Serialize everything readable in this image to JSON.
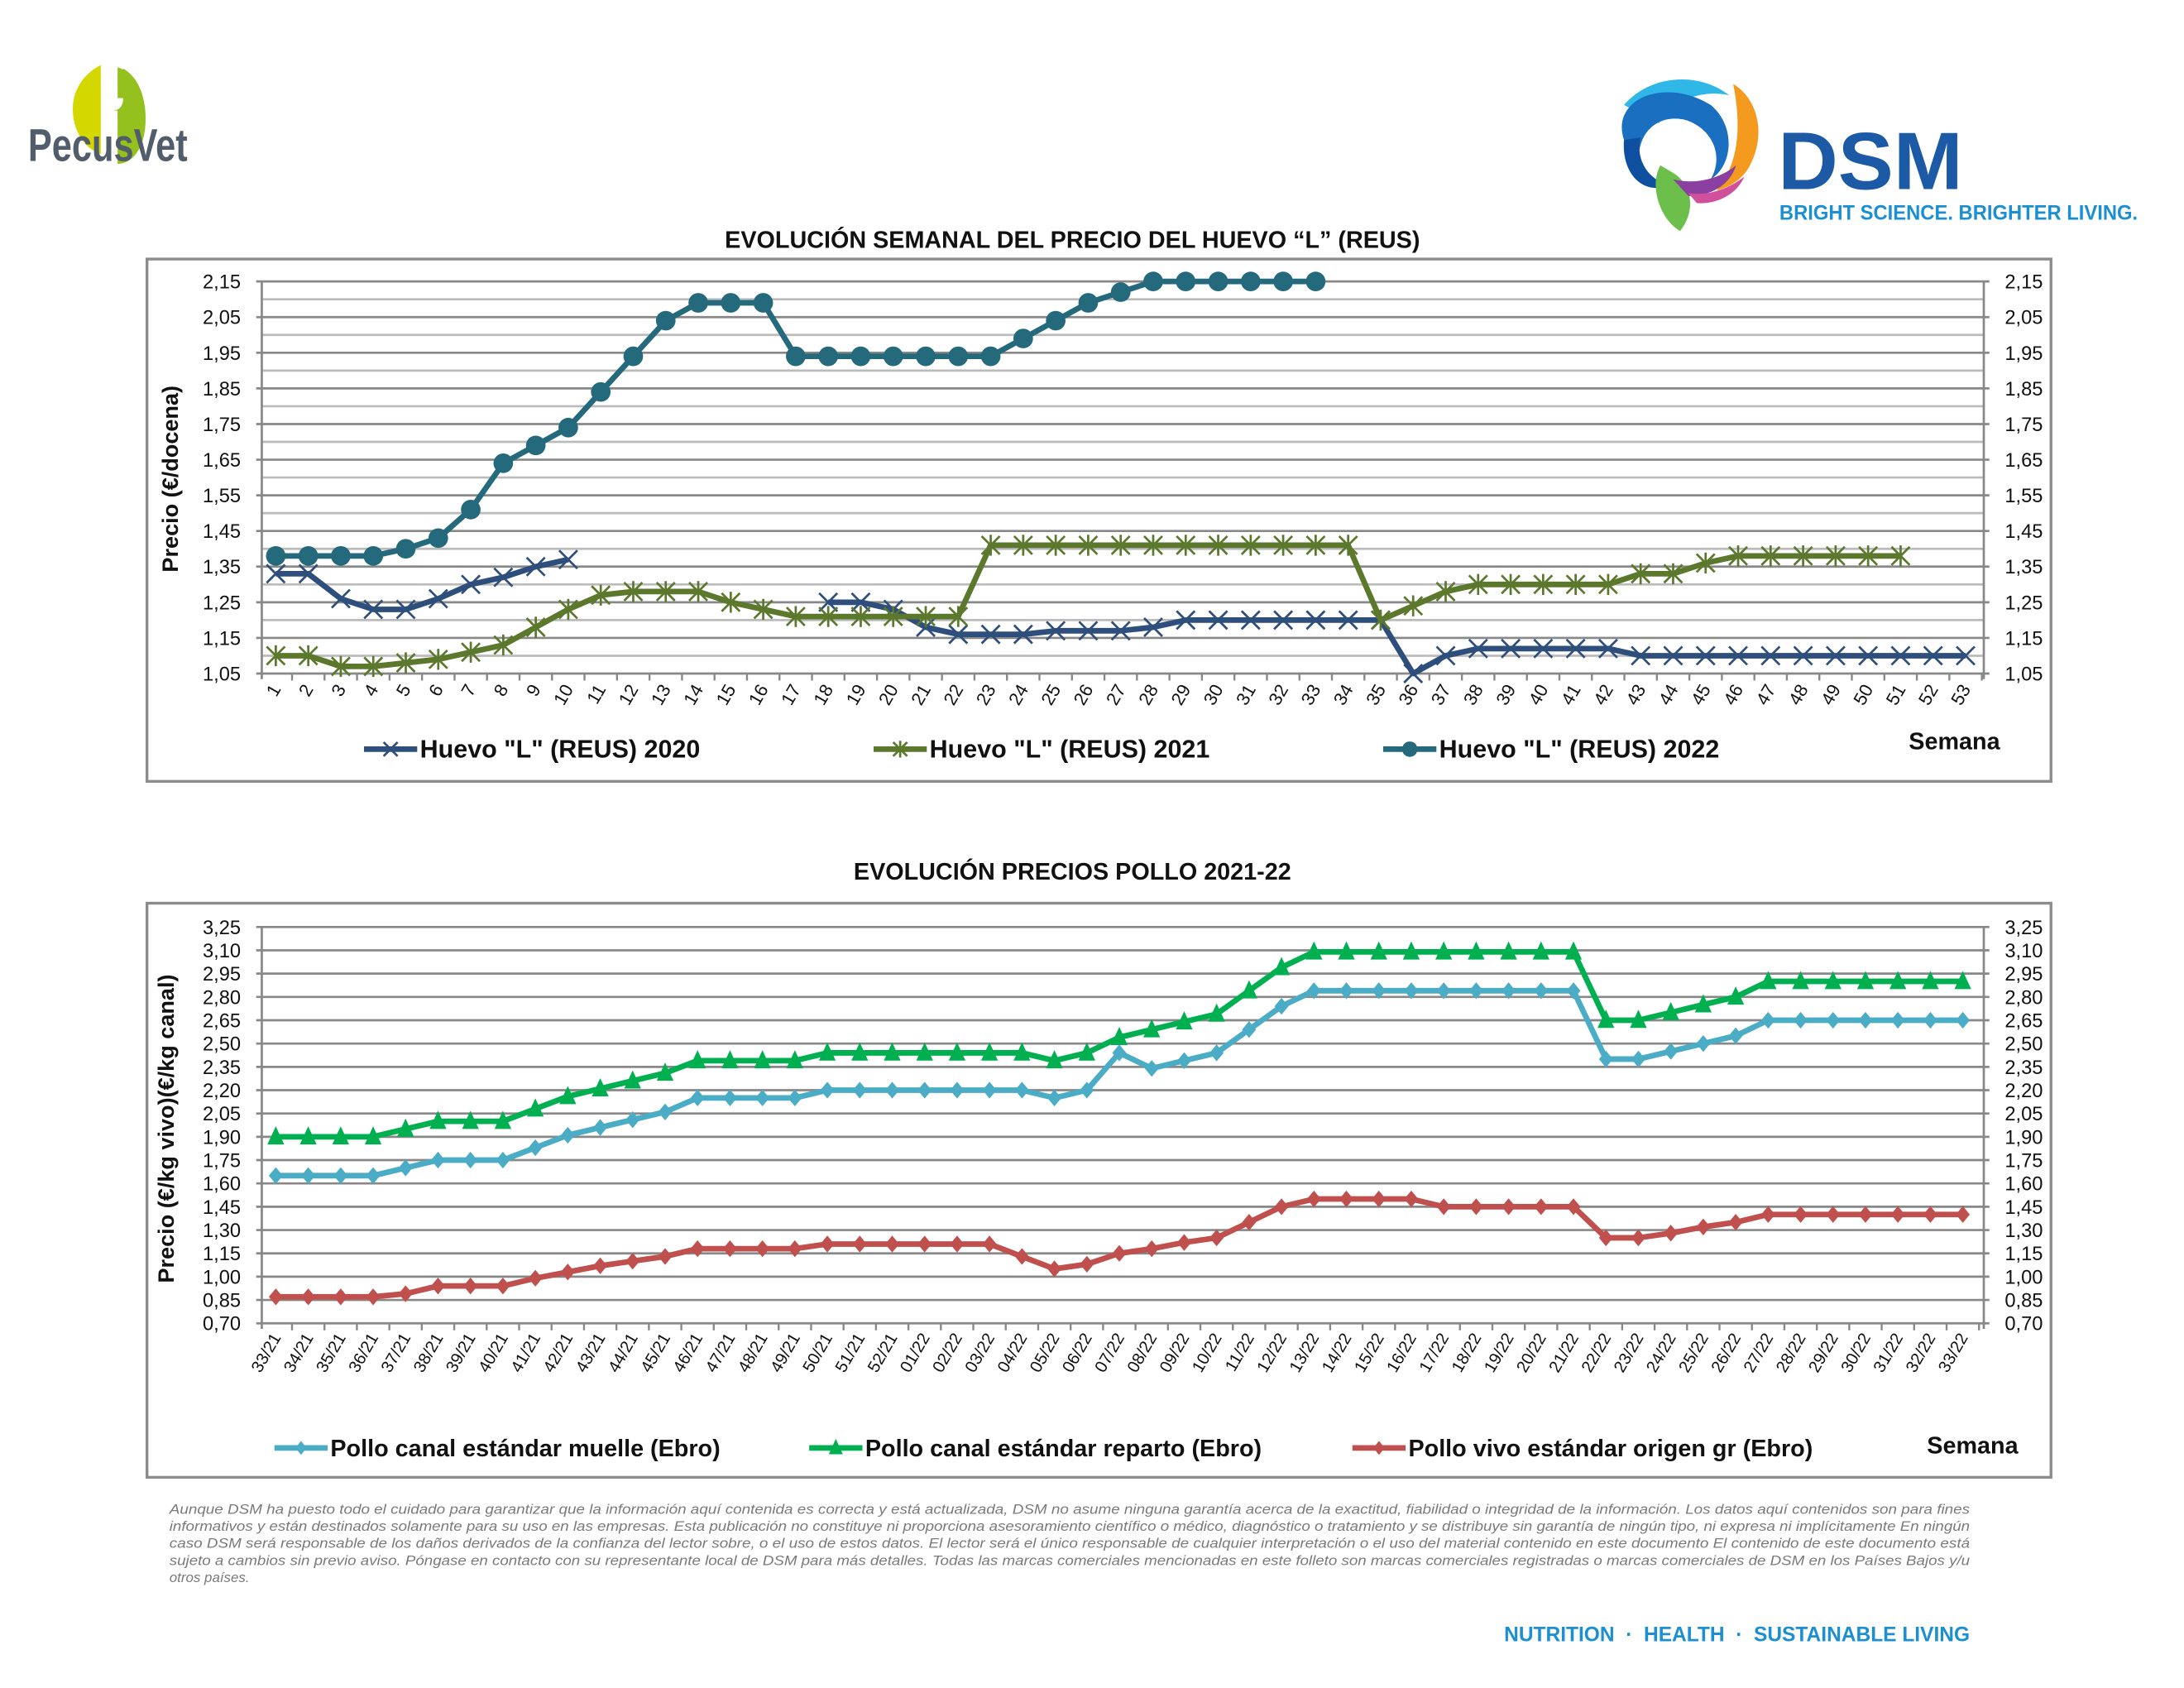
{
  "header": {
    "left_logo_text": "PecusVet",
    "right_logo_text": "DSM",
    "right_logo_tagline": "BRIGHT SCIENCE. BRIGHTER LIVING."
  },
  "colors": {
    "egg_2020": "#2e4e7b",
    "egg_2021": "#5b782d",
    "egg_2022": "#246a7c",
    "pollo_muelle": "#4bacc6",
    "pollo_reparto": "#00b050",
    "pollo_vivo": "#c0504d",
    "grid_major": "#888888",
    "grid_minor": "#bbbbbb",
    "dsm_blue": "#1c5aa6",
    "dsm_light_blue": "#1b8fd2",
    "pecusvet_green": "#95c11f",
    "pecusvet_lime": "#d4d800",
    "pecusvet_gray": "#515d6b"
  },
  "chart_data": [
    {
      "type": "line",
      "title": "EVOLUCIÓN SEMANAL DEL PRECIO DEL HUEVO “L” (REUS)",
      "xlabel": "Semana",
      "ylabel": "Precio (€/docena)",
      "ylim": [
        1.05,
        2.15
      ],
      "ytick_step": 0.1,
      "minor_grid_step": 0.05,
      "yticks": [
        "2,15",
        "2,05",
        "1,95",
        "1,85",
        "1,75",
        "1,65",
        "1,55",
        "1,45",
        "1,35",
        "1,25",
        "1,15",
        "1,05"
      ],
      "secondary_axis": true,
      "grid": true,
      "legend_position": "bottom",
      "categories": [
        "1",
        "2",
        "3",
        "4",
        "5",
        "6",
        "7",
        "8",
        "9",
        "10",
        "11",
        "12",
        "13",
        "14",
        "15",
        "16",
        "17",
        "18",
        "19",
        "20",
        "21",
        "22",
        "23",
        "24",
        "25",
        "26",
        "27",
        "28",
        "29",
        "30",
        "31",
        "32",
        "33",
        "34",
        "35",
        "36",
        "37",
        "38",
        "39",
        "40",
        "41",
        "42",
        "43",
        "44",
        "45",
        "46",
        "47",
        "48",
        "49",
        "50",
        "51",
        "52",
        "53"
      ],
      "series": [
        {
          "name": "Huevo \"L\" (REUS) 2020",
          "marker": "x",
          "values": [
            1.33,
            1.33,
            1.26,
            1.23,
            1.23,
            1.26,
            1.3,
            1.32,
            1.35,
            1.37,
            null,
            null,
            null,
            null,
            null,
            null,
            null,
            1.25,
            1.25,
            1.23,
            1.18,
            1.16,
            1.16,
            1.16,
            1.17,
            1.17,
            1.17,
            1.18,
            1.2,
            1.2,
            1.2,
            1.2,
            1.2,
            1.2,
            1.2,
            1.05,
            1.1,
            1.12,
            1.12,
            1.12,
            1.12,
            1.12,
            1.1,
            1.1,
            1.1,
            1.1,
            1.1,
            1.1,
            1.1,
            1.1,
            1.1,
            1.1,
            1.1
          ]
        },
        {
          "name": "Huevo \"L\" (REUS) 2021",
          "marker": "asterisk",
          "values": [
            1.1,
            1.1,
            1.07,
            1.07,
            1.08,
            1.09,
            1.11,
            1.13,
            1.18,
            1.23,
            1.27,
            1.28,
            1.28,
            1.28,
            1.25,
            1.23,
            1.21,
            1.21,
            1.21,
            1.21,
            1.21,
            1.21,
            1.41,
            1.41,
            1.41,
            1.41,
            1.41,
            1.41,
            1.41,
            1.41,
            1.41,
            1.41,
            1.41,
            1.41,
            1.2,
            1.24,
            1.28,
            1.3,
            1.3,
            1.3,
            1.3,
            1.3,
            1.33,
            1.33,
            1.36,
            1.38,
            1.38,
            1.38,
            1.38,
            1.38,
            1.38,
            null,
            null
          ]
        },
        {
          "name": "Huevo \"L\" (REUS) 2022",
          "marker": "circle",
          "values": [
            1.38,
            1.38,
            1.38,
            1.38,
            1.4,
            1.43,
            1.51,
            1.64,
            1.69,
            1.74,
            1.84,
            1.94,
            2.04,
            2.09,
            2.09,
            2.09,
            1.94,
            1.94,
            1.94,
            1.94,
            1.94,
            1.94,
            1.94,
            1.99,
            2.04,
            2.09,
            2.12,
            2.15,
            2.15,
            2.15,
            2.15,
            2.15,
            2.15,
            null,
            null,
            null,
            null,
            null,
            null,
            null,
            null,
            null,
            null,
            null,
            null,
            null,
            null,
            null,
            null,
            null,
            null,
            null,
            null
          ]
        }
      ]
    },
    {
      "type": "line",
      "title": "EVOLUCIÓN PRECIOS POLLO 2021-22",
      "xlabel": "Semana",
      "ylabel": "Precio (€/kg vivo)(€/kg canal)",
      "ylim": [
        0.7,
        3.25
      ],
      "ytick_step": 0.15,
      "yticks": [
        "3,25",
        "3,10",
        "2,95",
        "2,80",
        "2,65",
        "2,50",
        "2,35",
        "2,20",
        "2,05",
        "1,90",
        "1,75",
        "1,60",
        "1,45",
        "1,30",
        "1,15",
        "1,00",
        "0,85",
        "0,70"
      ],
      "secondary_axis": true,
      "grid": true,
      "legend_position": "bottom",
      "categories": [
        "33/21",
        "34/21",
        "35/21",
        "36/21",
        "37/21",
        "38/21",
        "39/21",
        "40/21",
        "41/21",
        "42/21",
        "43/21",
        "44/21",
        "45/21",
        "46/21",
        "47/21",
        "48/21",
        "49/21",
        "50/21",
        "51/21",
        "52/21",
        "01/22",
        "02/22",
        "03/22",
        "04/22",
        "05/22",
        "06/22",
        "07/22",
        "08/22",
        "09/22",
        "10/22",
        "11/22",
        "12/22",
        "13/22",
        "14/22",
        "15/22",
        "16/22",
        "17/22",
        "18/22",
        "19/22",
        "20/22",
        "21/22",
        "22/22",
        "23/22",
        "24/22",
        "25/22",
        "26/22",
        "27/22",
        "28/22",
        "29/22",
        "30/22",
        "31/22",
        "32/22",
        "33/22"
      ],
      "series": [
        {
          "name": "Pollo canal estándar muelle (Ebro)",
          "marker": "diamond",
          "values": [
            1.65,
            1.65,
            1.65,
            1.65,
            1.7,
            1.75,
            1.75,
            1.75,
            1.83,
            1.91,
            1.96,
            2.01,
            2.06,
            2.15,
            2.15,
            2.15,
            2.15,
            2.2,
            2.2,
            2.2,
            2.2,
            2.2,
            2.2,
            2.2,
            2.15,
            2.2,
            2.44,
            2.34,
            2.39,
            2.44,
            2.59,
            2.74,
            2.84,
            2.84,
            2.84,
            2.84,
            2.84,
            2.84,
            2.84,
            2.84,
            2.84,
            2.4,
            2.4,
            2.45,
            2.5,
            2.55,
            2.65,
            2.65,
            2.65,
            2.65,
            2.65,
            2.65,
            2.65
          ]
        },
        {
          "name": "Pollo canal estándar reparto (Ebro)",
          "marker": "triangle",
          "values": [
            1.9,
            1.9,
            1.9,
            1.9,
            1.95,
            2.0,
            2.0,
            2.0,
            2.08,
            2.16,
            2.21,
            2.26,
            2.31,
            2.39,
            2.39,
            2.39,
            2.39,
            2.44,
            2.44,
            2.44,
            2.44,
            2.44,
            2.44,
            2.44,
            2.39,
            2.44,
            2.54,
            2.59,
            2.64,
            2.69,
            2.84,
            2.99,
            3.09,
            3.09,
            3.09,
            3.09,
            3.09,
            3.09,
            3.09,
            3.09,
            3.09,
            2.65,
            2.65,
            2.7,
            2.75,
            2.8,
            2.9,
            2.9,
            2.9,
            2.9,
            2.9,
            2.9,
            2.9
          ]
        },
        {
          "name": "Pollo vivo estándar origen gr (Ebro)",
          "marker": "diamond",
          "values": [
            0.87,
            0.87,
            0.87,
            0.87,
            0.89,
            0.94,
            0.94,
            0.94,
            0.99,
            1.03,
            1.07,
            1.1,
            1.13,
            1.18,
            1.18,
            1.18,
            1.18,
            1.21,
            1.21,
            1.21,
            1.21,
            1.21,
            1.21,
            1.13,
            1.05,
            1.08,
            1.15,
            1.18,
            1.22,
            1.25,
            1.35,
            1.45,
            1.5,
            1.5,
            1.5,
            1.5,
            1.45,
            1.45,
            1.45,
            1.45,
            1.45,
            1.25,
            1.25,
            1.28,
            1.32,
            1.35,
            1.4,
            1.4,
            1.4,
            1.4,
            1.4,
            1.4,
            1.4
          ]
        }
      ]
    }
  ],
  "disclaimer": [
    "Aunque DSM ha puesto todo el cuidado para garantizar que la información aquí contenida es correcta y está actualizada, DSM no asume ninguna garantía acerca de la exactitud, fiabilidad o integridad de la información. Los datos aquí contenidos son para fines",
    "informativos y están destinados solamente para su uso en las empresas. Esta publicación no constituye ni proporciona asesoramiento científico o médico, diagnóstico o tratamiento y se distribuye sin garantía de ningún tipo, ni expresa ni implícitamente En ningún",
    "caso DSM será responsable de los daños derivados de la confianza del lector sobre, o el uso de estos datos. El lector será el único responsable de cualquier interpretación o el uso del material contenido en este documento El contenido de este documento está",
    "sujeto a cambios sin previo aviso. Póngase en contacto con su representante local de DSM para más detalles. Todas las marcas comerciales mencionadas en este folleto son marcas comerciales registradas o marcas comerciales de DSM en los Países Bajos y/u",
    "otros países."
  ],
  "footer": {
    "tagline": "NUTRITION  ·  HEALTH  ·  SUSTAINABLE LIVING"
  }
}
